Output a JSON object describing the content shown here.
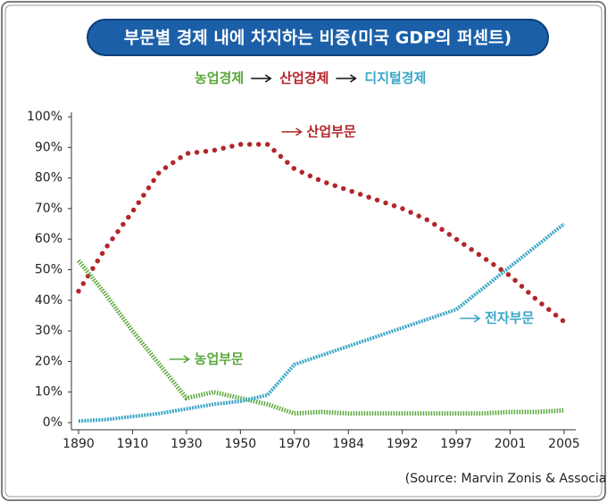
{
  "chart_data": {
    "type": "line",
    "title": "부문별 경제 내에 차지하는 비중(미국 GDP의 퍼센트)",
    "subtitle": [
      {
        "text": "농업경제",
        "color": "#5aa83a"
      },
      {
        "text": "산업경제",
        "color": "#b3262a"
      },
      {
        "text": "디지털경제",
        "color": "#3aa6c8"
      }
    ],
    "categories": [
      "1890",
      null,
      "1910",
      null,
      "1930",
      null,
      "1950",
      null,
      "1970",
      null,
      "1984",
      null,
      "1992",
      null,
      "1997",
      null,
      "2001",
      null,
      "2005"
    ],
    "series": [
      {
        "name": "산업부문",
        "color": "#b3262a",
        "line_style": "dotted",
        "values": [
          43,
          57,
          69,
          82,
          88,
          89,
          91,
          91,
          83,
          79,
          76,
          73,
          70,
          66,
          60,
          54,
          48,
          40,
          33
        ]
      },
      {
        "name": "농업부문",
        "color": "#5aa83a",
        "line_style": "hatched",
        "values": [
          53,
          42,
          30,
          19,
          8,
          10,
          8,
          6,
          3,
          3.5,
          3,
          3,
          3,
          3,
          3,
          3,
          3.5,
          3.5,
          4
        ]
      },
      {
        "name": "전자부문",
        "color": "#3aa6c8",
        "line_style": "double",
        "values": [
          0.5,
          1,
          2,
          3,
          4.5,
          6,
          7,
          9,
          19,
          22,
          25,
          28,
          31,
          34,
          37,
          44,
          51,
          58,
          65
        ]
      }
    ],
    "ylim": [
      0,
      100
    ],
    "yticks": [
      {
        "value": 0,
        "label": "0%"
      },
      {
        "value": 10,
        "label": "10%"
      },
      {
        "value": 20,
        "label": "20%"
      },
      {
        "value": 30,
        "label": "30%"
      },
      {
        "value": 40,
        "label": "40%"
      },
      {
        "value": 50,
        "label": "50%"
      },
      {
        "value": 60,
        "label": "60%"
      },
      {
        "value": 70,
        "label": "70%"
      },
      {
        "value": 80,
        "label": "80%"
      },
      {
        "value": 90,
        "label": "90%"
      },
      {
        "value": 100,
        "label": "100%"
      }
    ],
    "source": "(Source: Marvin Zonis & Associates)"
  }
}
